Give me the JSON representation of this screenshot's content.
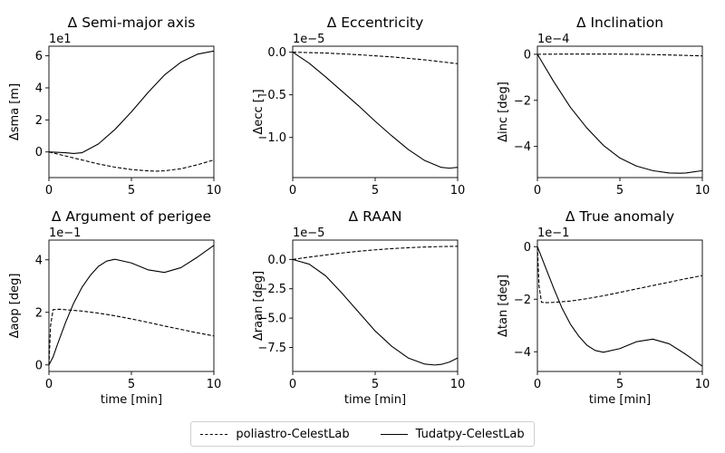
{
  "chart_data": [
    {
      "type": "line",
      "title": "Δ Semi-major axis",
      "xlabel": "",
      "ylabel": "Δsma [m]",
      "offset_label": "1e1",
      "xlim": [
        0,
        10
      ],
      "ylim": [
        -1.6,
        6.6
      ],
      "xticks": [
        0,
        5,
        10
      ],
      "xtick_labels": [
        "0",
        "5",
        "10"
      ],
      "yticks": [
        0,
        2,
        4,
        6
      ],
      "ytick_labels": [
        "0",
        "2",
        "4",
        "6"
      ],
      "series": [
        {
          "name": "poliastro-CelestLab",
          "style": "dashed",
          "x": [
            0,
            1,
            2,
            3,
            4,
            5,
            6,
            6.5,
            7,
            8,
            9,
            10
          ],
          "y": [
            0,
            -0.25,
            -0.5,
            -0.75,
            -0.95,
            -1.1,
            -1.18,
            -1.2,
            -1.18,
            -1.05,
            -0.8,
            -0.5
          ]
        },
        {
          "name": "Tudatpy-CelestLab",
          "style": "solid",
          "x": [
            0,
            1,
            1.5,
            2,
            3,
            4,
            5,
            6,
            7,
            8,
            9,
            10
          ],
          "y": [
            0,
            -0.05,
            -0.1,
            -0.05,
            0.5,
            1.4,
            2.5,
            3.7,
            4.8,
            5.6,
            6.1,
            6.3
          ]
        }
      ]
    },
    {
      "type": "line",
      "title": "Δ Eccentricity",
      "xlabel": "",
      "ylabel": "Δecc [-]",
      "offset_label": "1e−5",
      "xlim": [
        0,
        10
      ],
      "ylim": [
        -1.47,
        0.07
      ],
      "xticks": [
        0,
        5,
        10
      ],
      "xtick_labels": [
        "0",
        "5",
        "10"
      ],
      "yticks": [
        0.0,
        -0.5,
        -1.0
      ],
      "ytick_labels": [
        "0.0",
        "−0.5",
        "−1.0"
      ],
      "series": [
        {
          "name": "poliastro-CelestLab",
          "style": "dashed",
          "x": [
            0,
            2,
            4,
            6,
            8,
            10
          ],
          "y": [
            0,
            -0.01,
            -0.03,
            -0.055,
            -0.09,
            -0.135
          ]
        },
        {
          "name": "Tudatpy-CelestLab",
          "style": "solid",
          "x": [
            0,
            1,
            2,
            3,
            4,
            5,
            6,
            7,
            8,
            9,
            9.5,
            10
          ],
          "y": [
            0,
            -0.13,
            -0.29,
            -0.46,
            -0.63,
            -0.81,
            -0.98,
            -1.14,
            -1.27,
            -1.35,
            -1.36,
            -1.35
          ]
        }
      ]
    },
    {
      "type": "line",
      "title": "Δ Inclination",
      "xlabel": "",
      "ylabel": "Δinc [deg]",
      "offset_label": "1e−4",
      "xlim": [
        0,
        10
      ],
      "ylim": [
        -5.35,
        0.35
      ],
      "xticks": [
        0,
        5,
        10
      ],
      "xtick_labels": [
        "0",
        "5",
        "10"
      ],
      "yticks": [
        0,
        -2,
        -4
      ],
      "ytick_labels": [
        "0",
        "−2",
        "−4"
      ],
      "series": [
        {
          "name": "poliastro-CelestLab",
          "style": "dashed",
          "x": [
            0,
            2,
            4,
            6,
            8,
            10
          ],
          "y": [
            0,
            0.01,
            0.01,
            0,
            -0.03,
            -0.07
          ]
        },
        {
          "name": "Tudatpy-CelestLab",
          "style": "solid",
          "x": [
            0,
            1,
            2,
            3,
            4,
            5,
            6,
            7,
            8,
            8.7,
            9,
            10
          ],
          "y": [
            0,
            -1.2,
            -2.3,
            -3.2,
            -3.95,
            -4.5,
            -4.85,
            -5.05,
            -5.15,
            -5.16,
            -5.15,
            -5.05
          ]
        }
      ]
    },
    {
      "type": "line",
      "title": "Δ Argument of perigee",
      "xlabel": "time [min]",
      "ylabel": "Δaop [deg]",
      "offset_label": "1e−1",
      "xlim": [
        0,
        10
      ],
      "ylim": [
        -0.25,
        4.75
      ],
      "xticks": [
        0,
        5,
        10
      ],
      "xtick_labels": [
        "0",
        "5",
        "10"
      ],
      "yticks": [
        0,
        2,
        4
      ],
      "ytick_labels": [
        "0",
        "2",
        "4"
      ],
      "series": [
        {
          "name": "poliastro-CelestLab",
          "style": "dashed",
          "x": [
            0,
            0.1,
            0.25,
            0.6,
            1,
            2,
            3,
            4,
            5,
            6,
            7,
            8,
            9,
            10
          ],
          "y": [
            0,
            1.5,
            2.1,
            2.12,
            2.1,
            2.05,
            1.97,
            1.87,
            1.75,
            1.62,
            1.48,
            1.35,
            1.22,
            1.1
          ]
        },
        {
          "name": "Tudatpy-CelestLab",
          "style": "solid",
          "x": [
            0,
            0.25,
            0.5,
            1,
            1.5,
            2,
            2.5,
            3,
            3.5,
            4,
            5,
            6,
            7,
            8,
            9,
            10
          ],
          "y": [
            0,
            0.3,
            0.75,
            1.6,
            2.35,
            2.95,
            3.4,
            3.75,
            3.95,
            4.02,
            3.88,
            3.62,
            3.52,
            3.7,
            4.1,
            4.55
          ]
        }
      ]
    },
    {
      "type": "line",
      "title": "Δ RAAN",
      "xlabel": "time [min]",
      "ylabel": "Δraan [deg]",
      "offset_label": "1e−5",
      "xlim": [
        0,
        10
      ],
      "ylim": [
        -9.55,
        1.65
      ],
      "xticks": [
        0,
        5,
        10
      ],
      "xtick_labels": [
        "0",
        "5",
        "10"
      ],
      "yticks": [
        0.0,
        -2.5,
        -5.0,
        -7.5
      ],
      "ytick_labels": [
        "0.0",
        "−2.5",
        "−5.0",
        "−7.5"
      ],
      "series": [
        {
          "name": "poliastro-CelestLab",
          "style": "dashed",
          "x": [
            0,
            1,
            2,
            3,
            4,
            5,
            6,
            7,
            8,
            9,
            10
          ],
          "y": [
            0,
            0.2,
            0.38,
            0.55,
            0.7,
            0.82,
            0.92,
            1.0,
            1.06,
            1.1,
            1.12
          ]
        },
        {
          "name": "Tudatpy-CelestLab",
          "style": "solid",
          "x": [
            0,
            1,
            2,
            3,
            4,
            5,
            6,
            7,
            8,
            8.6,
            9,
            9.5,
            10
          ],
          "y": [
            0,
            -0.4,
            -1.4,
            -2.9,
            -4.5,
            -6.1,
            -7.4,
            -8.4,
            -8.92,
            -9.0,
            -8.95,
            -8.75,
            -8.4
          ]
        }
      ]
    },
    {
      "type": "line",
      "title": "Δ True anomaly",
      "xlabel": "time [min]",
      "ylabel": "Δtan [deg]",
      "offset_label": "1e−1",
      "xlim": [
        0,
        10
      ],
      "ylim": [
        -4.75,
        0.25
      ],
      "xticks": [
        0,
        5,
        10
      ],
      "xtick_labels": [
        "0",
        "5",
        "10"
      ],
      "yticks": [
        0,
        -2,
        -4
      ],
      "ytick_labels": [
        "0",
        "−2",
        "−4"
      ],
      "series": [
        {
          "name": "poliastro-CelestLab",
          "style": "dashed",
          "x": [
            0,
            0.1,
            0.25,
            0.6,
            1,
            2,
            3,
            4,
            5,
            6,
            7,
            8,
            9,
            10
          ],
          "y": [
            0,
            -1.5,
            -2.12,
            -2.13,
            -2.12,
            -2.07,
            -1.98,
            -1.87,
            -1.74,
            -1.61,
            -1.48,
            -1.35,
            -1.22,
            -1.1
          ]
        },
        {
          "name": "Tudatpy-CelestLab",
          "style": "solid",
          "x": [
            0,
            0.25,
            0.5,
            1,
            1.5,
            2,
            2.5,
            3,
            3.5,
            4,
            5,
            6,
            7,
            8,
            9,
            10
          ],
          "y": [
            0,
            -0.4,
            -0.8,
            -1.6,
            -2.35,
            -2.95,
            -3.4,
            -3.75,
            -3.95,
            -4.02,
            -3.88,
            -3.62,
            -3.52,
            -3.7,
            -4.1,
            -4.55
          ]
        }
      ]
    }
  ],
  "legend": {
    "entries": [
      {
        "label": "poliastro-CelestLab",
        "style": "dashed"
      },
      {
        "label": "Tudatpy-CelestLab",
        "style": "solid"
      }
    ]
  }
}
